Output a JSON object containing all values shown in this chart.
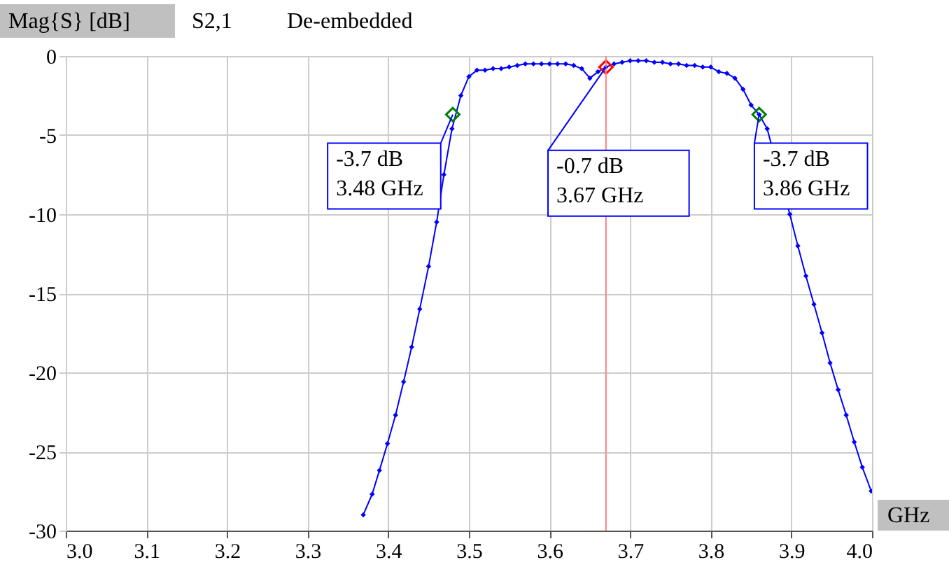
{
  "chart_data": {
    "type": "line",
    "title": "S2,1",
    "subtitle": "De-embedded",
    "ylabel": "Mag{S} [dB]",
    "xlabel": "GHz",
    "xlim": [
      3.0,
      4.0
    ],
    "ylim": [
      -30,
      0
    ],
    "xticks": [
      {
        "value": 3,
        "label": "3.0"
      },
      3.1,
      3.2,
      3.3,
      3.4,
      3.5,
      3.6,
      3.7,
      3.8,
      3.9,
      {
        "value": 4,
        "label": "4.0"
      }
    ],
    "yticks": [
      0,
      -5,
      -10,
      -15,
      -20,
      -25,
      -30
    ],
    "grid": true,
    "marker": "diamond",
    "series": [
      {
        "color": "#0000ff",
        "x": [
          3.369,
          3.38,
          3.389,
          3.399,
          3.409,
          3.419,
          3.429,
          3.439,
          3.45,
          3.46,
          3.469,
          3.479,
          3.49,
          3.5,
          3.51,
          3.52,
          3.53,
          3.54,
          3.55,
          3.56,
          3.57,
          3.58,
          3.59,
          3.6,
          3.61,
          3.62,
          3.63,
          3.64,
          3.65,
          3.66,
          3.67,
          3.68,
          3.69,
          3.7,
          3.71,
          3.72,
          3.73,
          3.74,
          3.75,
          3.76,
          3.77,
          3.78,
          3.79,
          3.8,
          3.81,
          3.82,
          3.83,
          3.84,
          3.85,
          3.86,
          3.87,
          3.898,
          3.908,
          3.918,
          3.928,
          3.938,
          3.948,
          3.958,
          3.968,
          3.978,
          3.988,
          3.999
        ],
        "values": [
          -29.0,
          -27.7,
          -26.2,
          -24.5,
          -22.7,
          -20.6,
          -18.4,
          -16.0,
          -13.3,
          -10.5,
          -7.5,
          -4.6,
          -2.5,
          -1.3,
          -0.9,
          -0.9,
          -0.8,
          -0.8,
          -0.7,
          -0.6,
          -0.5,
          -0.5,
          -0.5,
          -0.5,
          -0.5,
          -0.5,
          -0.6,
          -0.8,
          -1.4,
          -1.0,
          -0.7,
          -0.5,
          -0.4,
          -0.3,
          -0.3,
          -0.3,
          -0.4,
          -0.4,
          -0.5,
          -0.5,
          -0.6,
          -0.6,
          -0.7,
          -0.7,
          -1.0,
          -1.1,
          -1.4,
          -2.1,
          -3.1,
          -3.7,
          -4.6,
          -10.0,
          -12.0,
          -13.9,
          -15.7,
          -17.5,
          -19.4,
          -21.1,
          -22.7,
          -24.4,
          -26.0,
          -27.5
        ]
      },
      {
        "type": "scatter",
        "color": "#008000",
        "x": [
          3.48,
          3.86
        ],
        "values": [
          -3.7,
          -3.7
        ]
      },
      {
        "type": "scatter",
        "color": "#ff0000",
        "x": [
          3.67
        ],
        "values": [
          -0.7
        ]
      }
    ],
    "ref_lines": [
      {
        "axis": "x",
        "value": 3.67,
        "color": "#ff8080"
      }
    ],
    "annotations": [
      {
        "text": "-3.7 dB\n3.48 GHz",
        "x": 3.48,
        "y": -3.7
      },
      {
        "text": "-0.7 dB\n3.67 GHz",
        "x": 3.67,
        "y": -0.7
      },
      {
        "text": "-3.7 dB\n3.86 GHz",
        "x": 3.86,
        "y": -3.7
      }
    ]
  }
}
